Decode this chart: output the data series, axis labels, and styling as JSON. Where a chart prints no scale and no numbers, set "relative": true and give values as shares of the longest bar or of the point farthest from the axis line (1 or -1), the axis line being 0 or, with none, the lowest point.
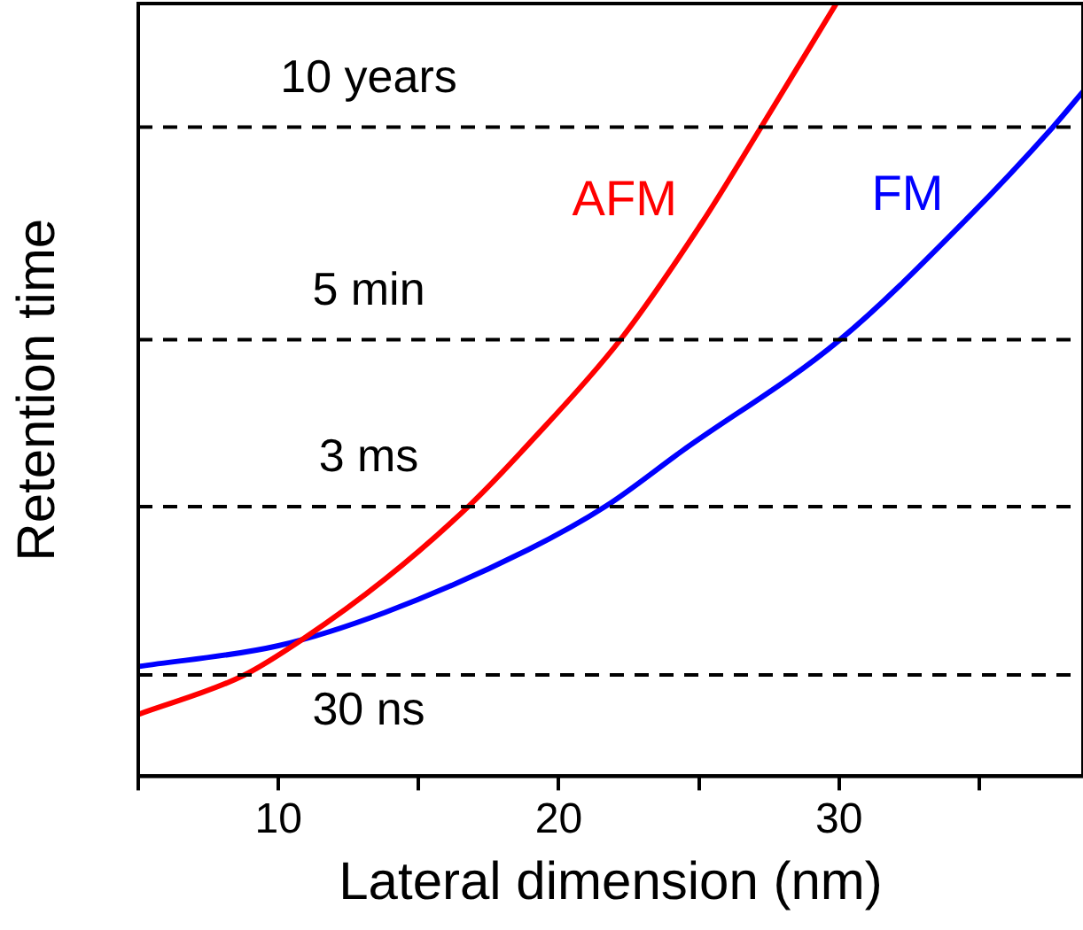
{
  "chart_data": {
    "type": "line",
    "relative": true,
    "xlabel": "Lateral dimension (nm)",
    "ylabel": "Retention time",
    "xlim": [
      5,
      38.7
    ],
    "xticks": [
      {
        "value": 5,
        "label": null
      },
      10,
      {
        "value": 15,
        "label": null
      },
      20,
      {
        "value": 25,
        "label": null
      },
      30,
      {
        "value": 35,
        "label": null
      }
    ],
    "series": [
      {
        "name": "AFM",
        "color": "#ff0000",
        "x": [
          5.0,
          8.73,
          10.85,
          13.8,
          16.8,
          18.9,
          22.2,
          25.1,
          27.2,
          29.9
        ],
        "values": [
          0.08,
          0.13,
          0.177,
          0.255,
          0.35,
          0.429,
          0.565,
          0.716,
          0.839,
          1.0
        ]
      },
      {
        "name": "FM",
        "color": "#0000ff",
        "x": [
          5.0,
          10.0,
          13.8,
          18.9,
          21.7,
          24.4,
          30.0,
          34.6,
          37.6,
          38.7
        ],
        "values": [
          0.142,
          0.169,
          0.212,
          0.293,
          0.35,
          0.421,
          0.564,
          0.723,
          0.839,
          0.886
        ]
      }
    ],
    "ref_lines": [
      {
        "axis": "y",
        "value": 0.131,
        "label": "30 ns",
        "color": "#000000",
        "line_style": "dashed"
      },
      {
        "axis": "y",
        "value": 0.349,
        "label": "3 ms",
        "color": "#000000",
        "line_style": "dashed"
      },
      {
        "axis": "y",
        "value": 0.565,
        "label": "5 min",
        "color": "#000000",
        "line_style": "dashed"
      },
      {
        "axis": "y",
        "value": 0.84,
        "label": "10 years",
        "color": "#000000",
        "line_style": "dashed"
      }
    ],
    "grid": false,
    "legend": false,
    "marker": "none",
    "line_style": "solid"
  }
}
